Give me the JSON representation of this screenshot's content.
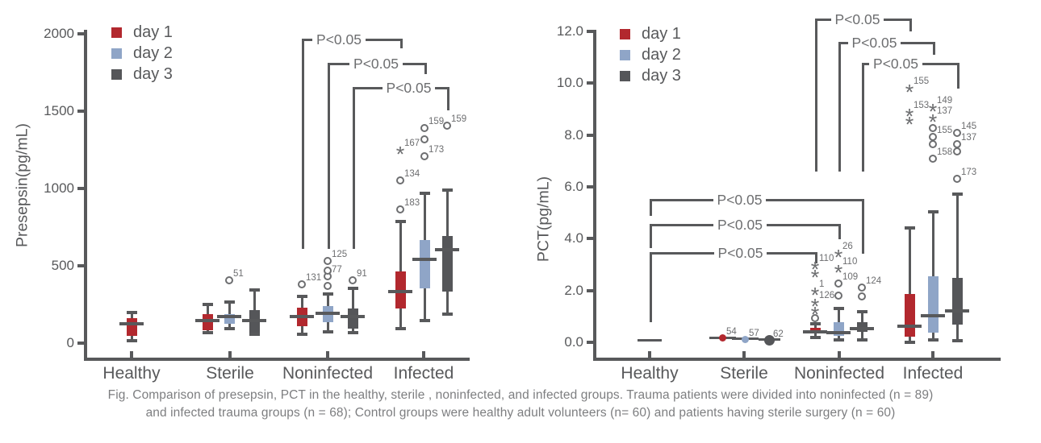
{
  "figure": {
    "caption_line1": "Fig. Comparison of presepsin, PCT in the healthy, sterile , noninfected, and infected groups. Trauma patients were divided into noninfected (n = 89)",
    "caption_line2": "and infected trauma groups (n = 68);  Control groups were healthy adult volunteers (n= 60) and patients having sterile surgery (n = 60)"
  },
  "colors": {
    "day1": "#b2282e",
    "day2": "#8fa5c7",
    "day3": "#555659",
    "axis": "#58595b",
    "marker": "#6d6e70",
    "text": "#6d6e70"
  },
  "chart_data": [
    {
      "type": "boxplot",
      "title": "",
      "ylabel": "Presepsin(pg/mL)",
      "ylim": [
        0,
        2000
      ],
      "grid": false,
      "legend_position": "top-left-inside",
      "yticks": [
        {
          "v": 0,
          "label": "0"
        },
        {
          "v": 500,
          "label": "500"
        },
        {
          "v": 1000,
          "label": "1000"
        },
        {
          "v": 1500,
          "label": "1500"
        },
        {
          "v": 2000,
          "label": "2000"
        }
      ],
      "categories": [
        "Healthy",
        "Sterile",
        "Noninfected",
        "Infected"
      ],
      "legend": [
        "day 1",
        "day 2",
        "day 3"
      ],
      "boxes": [
        {
          "id": "healthy.d1",
          "series": "day1",
          "group": "Healthy",
          "lo": 15,
          "q1": 45,
          "med": 125,
          "q3": 160,
          "hi": 200
        },
        {
          "id": "sterile.d1",
          "series": "day1",
          "group": "Sterile",
          "lo": 68,
          "q1": 83,
          "med": 146,
          "q3": 188,
          "hi": 250
        },
        {
          "id": "sterile.d2",
          "series": "day2",
          "group": "Sterile",
          "lo": 94,
          "q1": 125,
          "med": 172,
          "q3": 188,
          "hi": 266,
          "outliers": [
            {
              "v": 406,
              "t": "o",
              "label": "51"
            }
          ]
        },
        {
          "id": "sterile.d3",
          "series": "day3",
          "group": "Sterile",
          "lo": 57,
          "q1": 68,
          "med": 146,
          "q3": 214,
          "hi": 344
        },
        {
          "id": "noninfected.d1",
          "series": "day1",
          "group": "Noninfected",
          "lo": 57,
          "q1": 109,
          "med": 172,
          "q3": 229,
          "hi": 302,
          "outliers": [
            {
              "v": 380,
              "t": "o",
              "label": "131"
            }
          ]
        },
        {
          "id": "noninfected.d2",
          "series": "day2",
          "group": "Noninfected",
          "lo": 73,
          "q1": 135,
          "med": 193,
          "q3": 240,
          "hi": 318,
          "outliers": [
            {
              "v": 370,
              "t": "o"
            },
            {
              "v": 432,
              "t": "o",
              "label": "77"
            },
            {
              "v": 469,
              "t": "o"
            },
            {
              "v": 531,
              "t": "o",
              "label": "125"
            }
          ]
        },
        {
          "id": "noninfected.d3",
          "series": "day3",
          "group": "Noninfected",
          "lo": 68,
          "q1": 94,
          "med": 172,
          "q3": 224,
          "hi": 354,
          "outliers": [
            {
              "v": 406,
              "t": "o",
              "label": "91"
            }
          ]
        },
        {
          "id": "infected.d1",
          "series": "day1",
          "group": "Infected",
          "lo": 94,
          "q1": 224,
          "med": 333,
          "q3": 464,
          "hi": 787,
          "outliers": [
            {
              "v": 864,
              "t": "o",
              "label": "183"
            },
            {
              "v": 1050,
              "t": "o",
              "label": "134"
            },
            {
              "v": 1248,
              "t": "star",
              "label": "167"
            }
          ]
        },
        {
          "id": "infected.d2",
          "series": "day2",
          "group": "Infected",
          "lo": 146,
          "q1": 354,
          "med": 542,
          "q3": 667,
          "hi": 968,
          "outliers": [
            {
              "v": 1206,
              "t": "o",
              "label": "173"
            },
            {
              "v": 1320,
              "t": "o"
            },
            {
              "v": 1393,
              "t": "o",
              "label": "159"
            }
          ]
        },
        {
          "id": "infected.d3",
          "series": "day3",
          "group": "Infected",
          "lo": 188,
          "q1": 333,
          "med": 604,
          "q3": 693,
          "hi": 990,
          "outliers": [
            {
              "v": 1404,
              "t": "o",
              "label": "159"
            }
          ]
        }
      ],
      "brackets": [
        {
          "label": "P<0.05",
          "x1": "noninfected.d1",
          "x2": "infected.d1",
          "y": 1970,
          "d1": 610,
          "d2": 1905,
          "dx": -15
        },
        {
          "label": "P<0.05",
          "x1": "noninfected.d2",
          "x2": "infected.d2",
          "y": 1815,
          "d1": 610,
          "d2": 1740,
          "dx": 0
        },
        {
          "label": "P<0.05",
          "x1": "noninfected.d3",
          "x2": "infected.d3",
          "y": 1655,
          "d1": 610,
          "d2": 1505,
          "dx": 11
        }
      ]
    },
    {
      "type": "boxplot",
      "title": "",
      "ylabel": "PCT(pg/mL)",
      "ylim": [
        0,
        12
      ],
      "grid": false,
      "legend_position": "top-left-inside",
      "yticks": [
        {
          "v": 0,
          "label": "0.0"
        },
        {
          "v": 2,
          "label": "2.0"
        },
        {
          "v": 4,
          "label": "4.0"
        },
        {
          "v": 6,
          "label": "6.0"
        },
        {
          "v": 8,
          "label": "8.0"
        },
        {
          "v": 10,
          "label": "10.0"
        },
        {
          "v": 12,
          "label": "12.0"
        }
      ],
      "categories": [
        "Healthy",
        "Sterile",
        "Noninfected",
        "Infected"
      ],
      "legend": [
        "day 1",
        "day 2",
        "day 3"
      ],
      "boxes": [
        {
          "id": "healthy.d1",
          "series": "day1",
          "group": "Healthy",
          "med": 0.06,
          "lineW": 30
        },
        {
          "id": "sterile.d1",
          "series": "day1",
          "group": "Sterile",
          "med": 0.16,
          "lineW": 33,
          "outliers": [
            {
              "v": 0.16,
              "t": "dot",
              "label": "54"
            }
          ]
        },
        {
          "id": "sterile.d2",
          "series": "day2",
          "group": "Sterile",
          "med": 0.12,
          "lineW": 33,
          "outliers": [
            {
              "v": 0.1,
              "t": "dot",
              "label": "57"
            }
          ]
        },
        {
          "id": "sterile.d3",
          "series": "day3",
          "group": "Sterile",
          "med": 0.09,
          "lineW": 27,
          "outliers": [
            {
              "v": 0.07,
              "t": "dotbig",
              "label": "62"
            }
          ]
        },
        {
          "id": "noninfected.d1",
          "series": "day1",
          "group": "Noninfected",
          "lo": 0.2,
          "q1": 0.35,
          "med": 0.4,
          "q3": 0.56,
          "hi": 0.72,
          "outliers": [
            {
              "v": 0.93,
              "t": "o"
            },
            {
              "v": 1.24,
              "t": "star"
            },
            {
              "v": 1.55,
              "t": "star",
              "label": "126"
            },
            {
              "v": 1.99,
              "t": "star",
              "label": "1"
            },
            {
              "v": 2.67,
              "t": "star"
            },
            {
              "v": 2.98,
              "t": "star",
              "label": "110"
            }
          ]
        },
        {
          "id": "noninfected.d2",
          "series": "day2",
          "group": "Noninfected",
          "lo": 0.09,
          "q1": 0.25,
          "med": 0.37,
          "q3": 0.78,
          "hi": 1.3,
          "outliers": [
            {
              "v": 1.8,
              "t": "o"
            },
            {
              "v": 2.27,
              "t": "o",
              "label": "109"
            },
            {
              "v": 2.86,
              "t": "star",
              "label": "110"
            },
            {
              "v": 3.45,
              "t": "star",
              "label": "26"
            }
          ]
        },
        {
          "id": "noninfected.d3",
          "series": "day3",
          "group": "Noninfected",
          "lo": 0.09,
          "q1": 0.4,
          "med": 0.53,
          "q3": 0.78,
          "hi": 1.18,
          "outliers": [
            {
              "v": 1.77,
              "t": "o"
            },
            {
              "v": 2.11,
              "t": "o",
              "label": "124"
            }
          ]
        },
        {
          "id": "infected.d1",
          "series": "day1",
          "group": "Infected",
          "lo": 0.0,
          "q1": 0.22,
          "med": 0.62,
          "q3": 1.86,
          "hi": 4.41,
          "outliers": [
            {
              "v": 8.57,
              "t": "star"
            },
            {
              "v": 8.88,
              "t": "star",
              "label": "153"
            },
            {
              "v": 9.81,
              "t": "star",
              "label": "155"
            }
          ]
        },
        {
          "id": "infected.d2",
          "series": "day2",
          "group": "Infected",
          "lo": 0.09,
          "q1": 0.37,
          "med": 1.02,
          "q3": 2.55,
          "hi": 5.03,
          "outliers": [
            {
              "v": 7.08,
              "t": "o",
              "label": "158"
            },
            {
              "v": 7.64,
              "t": "o"
            },
            {
              "v": 7.92,
              "t": "o",
              "label": "155"
            },
            {
              "v": 8.26,
              "t": "o"
            },
            {
              "v": 8.66,
              "t": "star",
              "label": "137"
            },
            {
              "v": 9.07,
              "t": "star",
              "label": "149"
            }
          ]
        },
        {
          "id": "infected.d3",
          "series": "day3",
          "group": "Infected",
          "lo": 0.06,
          "q1": 0.68,
          "med": 1.21,
          "q3": 2.48,
          "hi": 5.71,
          "outliers": [
            {
              "v": 6.3,
              "t": "o",
              "label": "173"
            },
            {
              "v": 7.36,
              "t": "o"
            },
            {
              "v": 7.64,
              "t": "o",
              "label": "137"
            },
            {
              "v": 8.07,
              "t": "o",
              "label": "145"
            }
          ]
        }
      ],
      "brackets": [
        {
          "label": "P<0.05",
          "x1": "noninfected.d1",
          "x2": "infected.d1",
          "y": 12.5,
          "d1": 6.6,
          "d2": 12.0,
          "dx": -6
        },
        {
          "label": "P<0.05",
          "x1": "noninfected.d2",
          "x2": "infected.d2",
          "y": 11.6,
          "d1": 6.6,
          "d2": 11.1,
          "dx": -14
        },
        {
          "label": "P<0.05",
          "x1": "noninfected.d3",
          "x2": "infected.d3",
          "y": 10.8,
          "d1": 6.6,
          "d2": 9.8,
          "dx": -17
        },
        {
          "label": "P<0.05",
          "x1": "healthy.d1",
          "x2": "noninfected.d3",
          "y": 5.53,
          "d1": 4.88,
          "d2": 3.42,
          "dx": -20
        },
        {
          "label": "P<0.05",
          "x1": "healthy.d1",
          "x2": "noninfected.d2",
          "y": 4.57,
          "d1": 3.63,
          "d2": 3.98,
          "dx": -5
        },
        {
          "label": "P<0.05",
          "x1": "healthy.d1",
          "x2": "noninfected.d1",
          "y": 3.48,
          "d1": 0.78,
          "d2": 3.04,
          "dx": 10
        }
      ]
    }
  ]
}
